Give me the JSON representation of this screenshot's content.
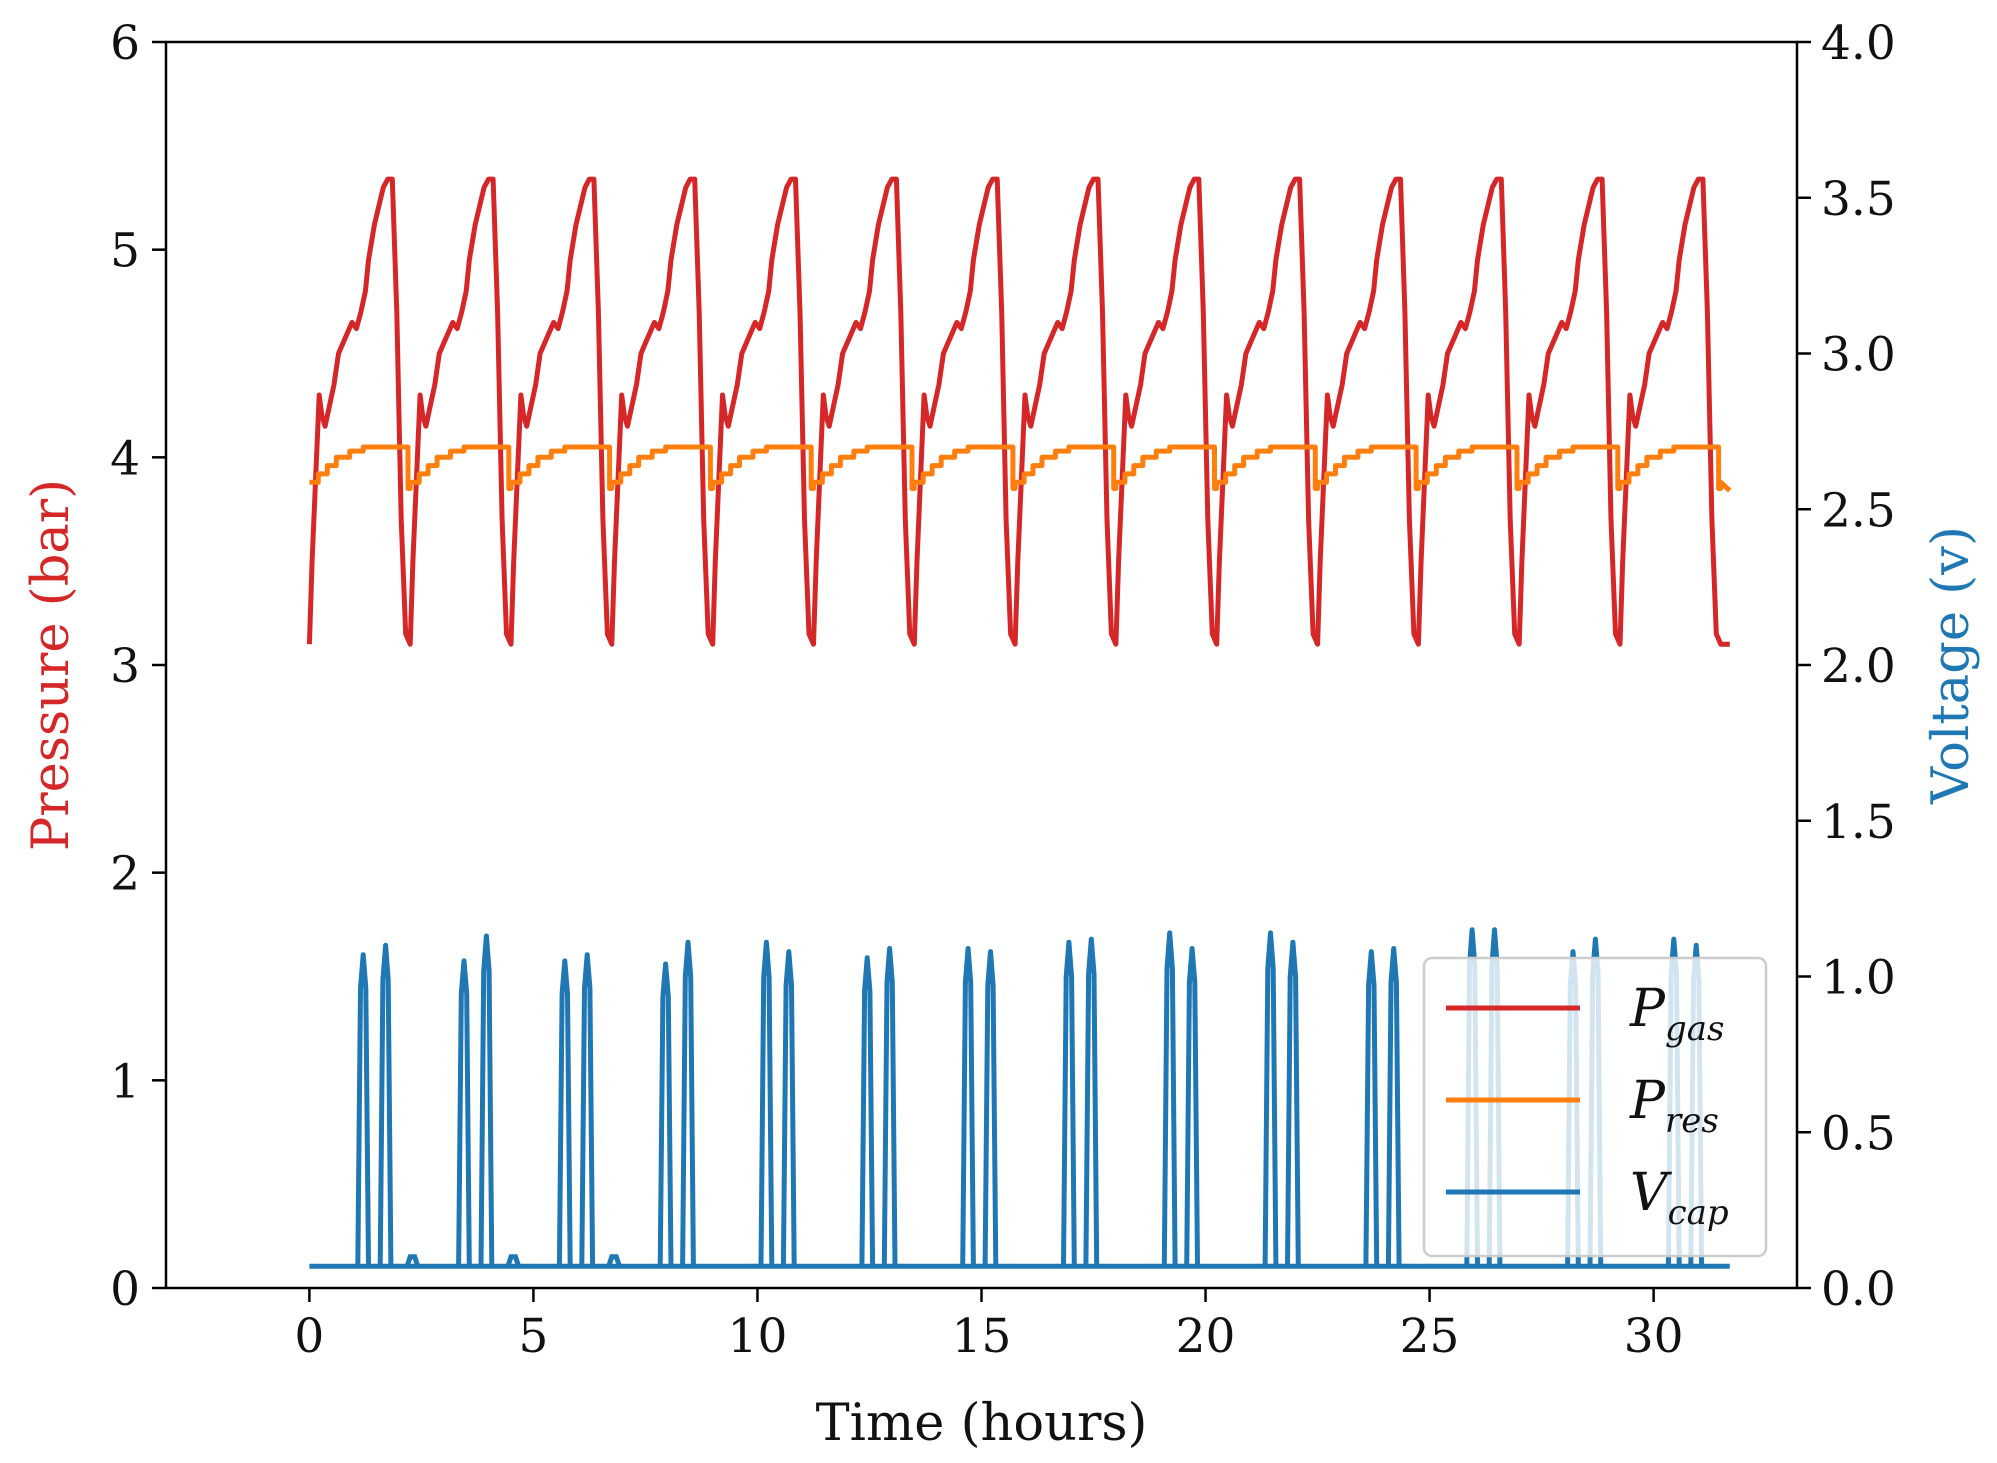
{
  "chart_data": {
    "type": "line",
    "xlabel": "Time (hours)",
    "ylabel_left": "Pressure (bar)",
    "ylabel_right": "Voltage (v)",
    "xlim": [
      -3.2,
      33.2
    ],
    "xticks": [
      0,
      5,
      10,
      15,
      20,
      25,
      30
    ],
    "xtick_labels": [
      "0",
      "5",
      "10",
      "15",
      "20",
      "25",
      "30"
    ],
    "ylim_left": [
      0,
      6
    ],
    "yticks_left": [
      0,
      1,
      2,
      3,
      4,
      5,
      6
    ],
    "ytick_labels_left": [
      "0",
      "1",
      "2",
      "3",
      "4",
      "5",
      "6"
    ],
    "ylim_right": [
      0,
      4
    ],
    "yticks_right": [
      0,
      0.5,
      1,
      1.5,
      2,
      2.5,
      3,
      3.5,
      4
    ],
    "ytick_labels_right": [
      "0.0",
      "0.5",
      "1.0",
      "1.5",
      "2.0",
      "2.5",
      "3.0",
      "3.5",
      "4.0"
    ],
    "colors": {
      "gas": "#d62728",
      "res": "#ff7f0e",
      "cap": "#1f77b4",
      "left_axis": "#d62728",
      "right_axis": "#1f77b4"
    },
    "legend": {
      "location": "lower-right",
      "entries": [
        {
          "main": "P",
          "sub": "gas",
          "color": "#d62728"
        },
        {
          "main": "P",
          "sub": "res",
          "color": "#ff7f0e"
        },
        {
          "main": "V",
          "sub": "cap",
          "color": "#1f77b4"
        }
      ]
    },
    "series": [
      {
        "name": "P_gas",
        "axis": "left",
        "period_hours": 2.25,
        "cycles": 14,
        "t_start": 0.0,
        "t_end": 31.7,
        "cycle_shape": {
          "t": [
            0,
            0.06,
            0.22,
            0.28,
            0.35,
            0.55,
            0.65,
            0.75,
            0.85,
            0.95,
            1.05,
            1.15,
            1.25,
            1.32,
            1.45,
            1.65,
            1.75,
            1.85,
            1.95,
            2.05,
            2.15,
            2.25
          ],
          "p": [
            3.1,
            3.5,
            4.3,
            4.2,
            4.15,
            4.35,
            4.5,
            4.55,
            4.6,
            4.65,
            4.62,
            4.7,
            4.8,
            4.95,
            5.12,
            5.3,
            5.34,
            5.34,
            4.7,
            3.7,
            3.15,
            3.1
          ]
        },
        "min": 3.1,
        "max": 5.34
      },
      {
        "name": "P_res",
        "axis": "left",
        "period_hours": 2.25,
        "cycles": 14,
        "t_start": 0.0,
        "t_end": 31.7,
        "cycle_shape": {
          "t": [
            0,
            0.2,
            0.4,
            0.6,
            0.9,
            1.2,
            1.5,
            1.8,
            2.2,
            2.25
          ],
          "p": [
            3.88,
            3.92,
            3.96,
            4.0,
            4.03,
            4.05,
            4.05,
            4.05,
            3.85,
            3.88
          ]
        },
        "final_value": 3.84
      },
      {
        "name": "V_cap",
        "axis": "right",
        "baseline": 0.07,
        "spikes": [
          {
            "t": 1.2,
            "v": 1.07
          },
          {
            "t": 1.7,
            "v": 1.1
          },
          {
            "t": 3.45,
            "v": 1.05
          },
          {
            "t": 3.95,
            "v": 1.13
          },
          {
            "t": 5.7,
            "v": 1.05
          },
          {
            "t": 6.2,
            "v": 1.07
          },
          {
            "t": 7.95,
            "v": 1.04
          },
          {
            "t": 8.45,
            "v": 1.11
          },
          {
            "t": 10.2,
            "v": 1.11
          },
          {
            "t": 10.7,
            "v": 1.08
          },
          {
            "t": 12.45,
            "v": 1.06
          },
          {
            "t": 12.95,
            "v": 1.09
          },
          {
            "t": 14.7,
            "v": 1.09
          },
          {
            "t": 15.2,
            "v": 1.08
          },
          {
            "t": 16.95,
            "v": 1.11
          },
          {
            "t": 17.45,
            "v": 1.12
          },
          {
            "t": 19.2,
            "v": 1.14
          },
          {
            "t": 19.7,
            "v": 1.09
          },
          {
            "t": 21.45,
            "v": 1.14
          },
          {
            "t": 21.95,
            "v": 1.11
          },
          {
            "t": 23.7,
            "v": 1.08
          },
          {
            "t": 24.2,
            "v": 1.09
          },
          {
            "t": 25.95,
            "v": 1.15
          },
          {
            "t": 26.45,
            "v": 1.15
          },
          {
            "t": 28.2,
            "v": 1.08
          },
          {
            "t": 28.7,
            "v": 1.12
          },
          {
            "t": 30.45,
            "v": 1.12
          },
          {
            "t": 30.95,
            "v": 1.1
          }
        ],
        "small_bumps": [
          {
            "t": 2.3,
            "v": 0.1
          },
          {
            "t": 4.55,
            "v": 0.1
          },
          {
            "t": 6.8,
            "v": 0.1
          }
        ]
      }
    ]
  }
}
